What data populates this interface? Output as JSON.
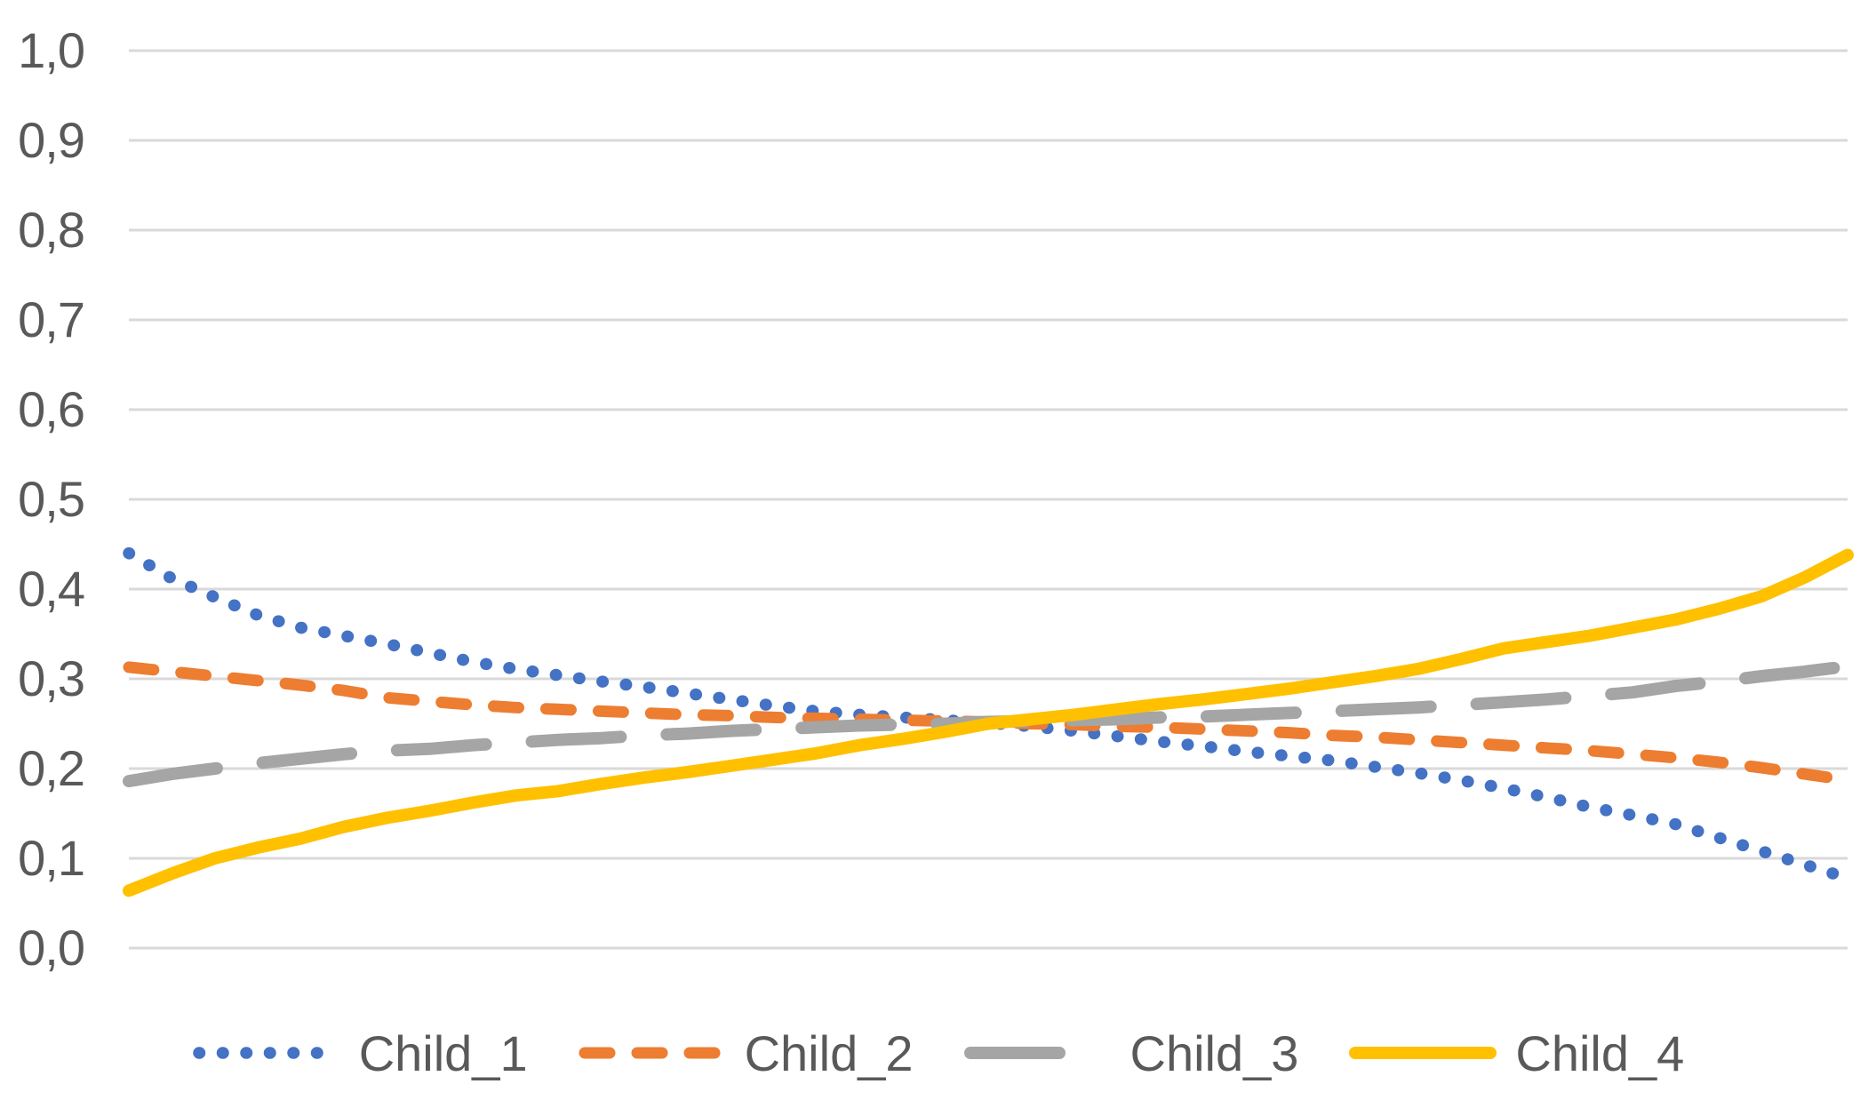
{
  "figure": {
    "background_color": "#FFFFFF",
    "grid_color": "#D9D9D9",
    "tick_text_color": "#595959"
  },
  "chart_data": {
    "type": "line",
    "title": "",
    "xlabel": "",
    "ylabel": "",
    "x_axis_visible": false,
    "grid": true,
    "legend_position": "bottom",
    "ylim": [
      0.0,
      1.0
    ],
    "y_tick_step": 0.1,
    "y_ticks": [
      {
        "value": 0.0,
        "label": "0,0"
      },
      {
        "value": 0.1,
        "label": "0,1"
      },
      {
        "value": 0.2,
        "label": "0,2"
      },
      {
        "value": 0.3,
        "label": "0,3"
      },
      {
        "value": 0.4,
        "label": "0,4"
      },
      {
        "value": 0.5,
        "label": "0,5"
      },
      {
        "value": 0.6,
        "label": "0,6"
      },
      {
        "value": 0.7,
        "label": "0,7"
      },
      {
        "value": 0.8,
        "label": "0,8"
      },
      {
        "value": 0.9,
        "label": "0,9"
      },
      {
        "value": 1.0,
        "label": "1,0"
      }
    ],
    "x": [
      0,
      1,
      2,
      3,
      4,
      5,
      6,
      7,
      8,
      9,
      10,
      11,
      12,
      13,
      14,
      15,
      16,
      17,
      18,
      19,
      20,
      21,
      22,
      23,
      24,
      25,
      26,
      27,
      28,
      29,
      30,
      31,
      32,
      33,
      34,
      35,
      36,
      37,
      38,
      39,
      40
    ],
    "series": [
      {
        "name": "Child_1",
        "color": "#4472C4",
        "dash": "dot",
        "values": [
          0.44,
          0.412,
          0.391,
          0.371,
          0.357,
          0.348,
          0.339,
          0.329,
          0.319,
          0.311,
          0.304,
          0.297,
          0.291,
          0.284,
          0.277,
          0.27,
          0.264,
          0.26,
          0.257,
          0.254,
          0.251,
          0.247,
          0.242,
          0.236,
          0.23,
          0.225,
          0.219,
          0.214,
          0.209,
          0.202,
          0.195,
          0.187,
          0.178,
          0.168,
          0.157,
          0.148,
          0.138,
          0.123,
          0.108,
          0.093,
          0.078
        ]
      },
      {
        "name": "Child_2",
        "color": "#ED7D31",
        "dash": "dash",
        "values": [
          0.313,
          0.308,
          0.303,
          0.298,
          0.293,
          0.287,
          0.279,
          0.275,
          0.271,
          0.268,
          0.266,
          0.264,
          0.262,
          0.26,
          0.259,
          0.257,
          0.256,
          0.255,
          0.254,
          0.253,
          0.252,
          0.25,
          0.249,
          0.247,
          0.246,
          0.244,
          0.242,
          0.24,
          0.237,
          0.235,
          0.232,
          0.229,
          0.226,
          0.223,
          0.22,
          0.216,
          0.212,
          0.207,
          0.201,
          0.194,
          0.187
        ]
      },
      {
        "name": "Child_3",
        "color": "#A5A5A5",
        "dash": "long-dash",
        "values": [
          0.186,
          0.194,
          0.2,
          0.206,
          0.211,
          0.216,
          0.22,
          0.222,
          0.226,
          0.229,
          0.232,
          0.234,
          0.237,
          0.239,
          0.242,
          0.244,
          0.246,
          0.248,
          0.249,
          0.25,
          0.252,
          0.253,
          0.254,
          0.255,
          0.257,
          0.258,
          0.26,
          0.262,
          0.264,
          0.266,
          0.268,
          0.271,
          0.274,
          0.277,
          0.281,
          0.285,
          0.292,
          0.297,
          0.303,
          0.308,
          0.314
        ]
      },
      {
        "name": "Child_4",
        "color": "#FFC000",
        "dash": "solid",
        "values": [
          0.064,
          0.083,
          0.1,
          0.112,
          0.122,
          0.135,
          0.145,
          0.153,
          0.162,
          0.17,
          0.175,
          0.183,
          0.19,
          0.196,
          0.203,
          0.21,
          0.217,
          0.226,
          0.233,
          0.241,
          0.25,
          0.255,
          0.26,
          0.266,
          0.272,
          0.277,
          0.283,
          0.289,
          0.296,
          0.303,
          0.311,
          0.322,
          0.334,
          0.341,
          0.348,
          0.357,
          0.366,
          0.378,
          0.392,
          0.413,
          0.438
        ]
      }
    ]
  }
}
